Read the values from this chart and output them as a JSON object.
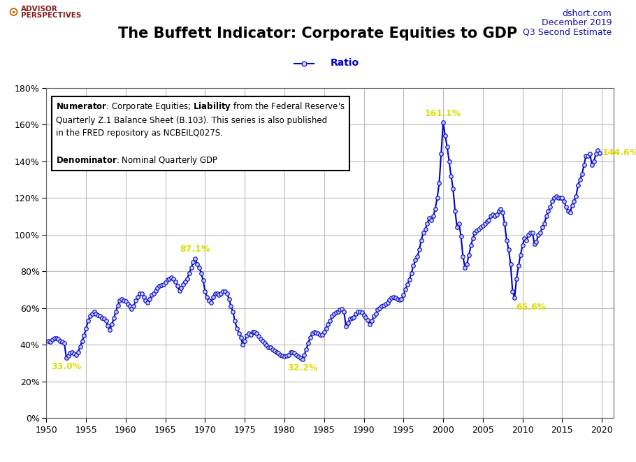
{
  "title": "The Buffett Indicator: Corporate Equities to GDP",
  "subtitle_right_line1": "dshort.com",
  "subtitle_right_line2": "December 2019",
  "subtitle_right_line3": "Q3 Second Estimate",
  "legend_label": "Ratio",
  "ylim": [
    0.0,
    1.8
  ],
  "xlim": [
    1950,
    2021.5
  ],
  "xticks": [
    1950,
    1955,
    1960,
    1965,
    1970,
    1975,
    1980,
    1985,
    1990,
    1995,
    2000,
    2005,
    2010,
    2015,
    2020
  ],
  "yticks": [
    0.0,
    0.2,
    0.4,
    0.6,
    0.8,
    1.0,
    1.2,
    1.4,
    1.6,
    1.8
  ],
  "line_color": "#0000CC",
  "marker_facecolor": "#c8d0f0",
  "background_color": "#ffffff",
  "grid_color": "#bbbbbb",
  "annotation_color": "#dddd00",
  "annotation_points": [
    {
      "year": 1952.5,
      "value": 0.33,
      "label": "33.0%",
      "ha": "center",
      "va": "top",
      "ox": 0,
      "oy": -0.025
    },
    {
      "year": 1968.75,
      "value": 0.871,
      "label": "87.1%",
      "ha": "center",
      "va": "bottom",
      "ox": 0,
      "oy": 0.025
    },
    {
      "year": 1982.25,
      "value": 0.322,
      "label": "32.2%",
      "ha": "center",
      "va": "top",
      "ox": 0,
      "oy": -0.025
    },
    {
      "year": 2000.0,
      "value": 1.611,
      "label": "161.1%",
      "ha": "center",
      "va": "bottom",
      "ox": 0,
      "oy": 0.025
    },
    {
      "year": 2009.0,
      "value": 0.656,
      "label": "65.6%",
      "ha": "left",
      "va": "top",
      "ox": 0.2,
      "oy": -0.025
    },
    {
      "year": 2019.75,
      "value": 1.446,
      "label": "144.6%",
      "ha": "left",
      "va": "center",
      "ox": 0.25,
      "oy": 0.0
    }
  ],
  "ratio_data": [
    [
      1950.25,
      0.42
    ],
    [
      1950.5,
      0.415
    ],
    [
      1950.75,
      0.428
    ],
    [
      1951.0,
      0.435
    ],
    [
      1951.25,
      0.435
    ],
    [
      1951.5,
      0.43
    ],
    [
      1951.75,
      0.42
    ],
    [
      1952.0,
      0.415
    ],
    [
      1952.25,
      0.41
    ],
    [
      1952.5,
      0.33
    ],
    [
      1952.75,
      0.34
    ],
    [
      1953.0,
      0.355
    ],
    [
      1953.25,
      0.36
    ],
    [
      1953.5,
      0.35
    ],
    [
      1953.75,
      0.345
    ],
    [
      1954.0,
      0.36
    ],
    [
      1954.25,
      0.39
    ],
    [
      1954.5,
      0.42
    ],
    [
      1954.75,
      0.45
    ],
    [
      1955.0,
      0.49
    ],
    [
      1955.25,
      0.53
    ],
    [
      1955.5,
      0.555
    ],
    [
      1955.75,
      0.57
    ],
    [
      1956.0,
      0.58
    ],
    [
      1956.25,
      0.57
    ],
    [
      1956.5,
      0.56
    ],
    [
      1956.75,
      0.555
    ],
    [
      1957.0,
      0.545
    ],
    [
      1957.25,
      0.54
    ],
    [
      1957.5,
      0.53
    ],
    [
      1957.75,
      0.505
    ],
    [
      1958.0,
      0.48
    ],
    [
      1958.25,
      0.51
    ],
    [
      1958.5,
      0.545
    ],
    [
      1958.75,
      0.58
    ],
    [
      1959.0,
      0.615
    ],
    [
      1959.25,
      0.64
    ],
    [
      1959.5,
      0.65
    ],
    [
      1959.75,
      0.64
    ],
    [
      1960.0,
      0.635
    ],
    [
      1960.25,
      0.62
    ],
    [
      1960.5,
      0.61
    ],
    [
      1960.75,
      0.595
    ],
    [
      1961.0,
      0.61
    ],
    [
      1961.25,
      0.64
    ],
    [
      1961.5,
      0.66
    ],
    [
      1961.75,
      0.68
    ],
    [
      1962.0,
      0.68
    ],
    [
      1962.25,
      0.66
    ],
    [
      1962.5,
      0.64
    ],
    [
      1962.75,
      0.63
    ],
    [
      1963.0,
      0.65
    ],
    [
      1963.25,
      0.67
    ],
    [
      1963.5,
      0.68
    ],
    [
      1963.75,
      0.695
    ],
    [
      1964.0,
      0.71
    ],
    [
      1964.25,
      0.72
    ],
    [
      1964.5,
      0.725
    ],
    [
      1964.75,
      0.73
    ],
    [
      1965.0,
      0.74
    ],
    [
      1965.25,
      0.755
    ],
    [
      1965.5,
      0.76
    ],
    [
      1965.75,
      0.765
    ],
    [
      1966.0,
      0.76
    ],
    [
      1966.25,
      0.745
    ],
    [
      1966.5,
      0.72
    ],
    [
      1966.75,
      0.695
    ],
    [
      1967.0,
      0.71
    ],
    [
      1967.25,
      0.73
    ],
    [
      1967.5,
      0.745
    ],
    [
      1967.75,
      0.76
    ],
    [
      1968.0,
      0.79
    ],
    [
      1968.25,
      0.82
    ],
    [
      1968.5,
      0.85
    ],
    [
      1968.75,
      0.871
    ],
    [
      1969.0,
      0.84
    ],
    [
      1969.25,
      0.82
    ],
    [
      1969.5,
      0.79
    ],
    [
      1969.75,
      0.75
    ],
    [
      1970.0,
      0.69
    ],
    [
      1970.25,
      0.66
    ],
    [
      1970.5,
      0.64
    ],
    [
      1970.75,
      0.63
    ],
    [
      1971.0,
      0.66
    ],
    [
      1971.25,
      0.68
    ],
    [
      1971.5,
      0.68
    ],
    [
      1971.75,
      0.67
    ],
    [
      1972.0,
      0.68
    ],
    [
      1972.25,
      0.69
    ],
    [
      1972.5,
      0.69
    ],
    [
      1972.75,
      0.68
    ],
    [
      1973.0,
      0.65
    ],
    [
      1973.25,
      0.61
    ],
    [
      1973.5,
      0.58
    ],
    [
      1973.75,
      0.53
    ],
    [
      1974.0,
      0.49
    ],
    [
      1974.25,
      0.46
    ],
    [
      1974.5,
      0.44
    ],
    [
      1974.75,
      0.4
    ],
    [
      1975.0,
      0.42
    ],
    [
      1975.25,
      0.45
    ],
    [
      1975.5,
      0.46
    ],
    [
      1975.75,
      0.455
    ],
    [
      1976.0,
      0.47
    ],
    [
      1976.25,
      0.47
    ],
    [
      1976.5,
      0.46
    ],
    [
      1976.75,
      0.445
    ],
    [
      1977.0,
      0.43
    ],
    [
      1977.25,
      0.42
    ],
    [
      1977.5,
      0.41
    ],
    [
      1977.75,
      0.395
    ],
    [
      1978.0,
      0.385
    ],
    [
      1978.25,
      0.385
    ],
    [
      1978.5,
      0.375
    ],
    [
      1978.75,
      0.365
    ],
    [
      1979.0,
      0.36
    ],
    [
      1979.25,
      0.355
    ],
    [
      1979.5,
      0.345
    ],
    [
      1979.75,
      0.34
    ],
    [
      1980.0,
      0.335
    ],
    [
      1980.25,
      0.34
    ],
    [
      1980.5,
      0.345
    ],
    [
      1980.75,
      0.36
    ],
    [
      1981.0,
      0.36
    ],
    [
      1981.25,
      0.355
    ],
    [
      1981.5,
      0.345
    ],
    [
      1981.75,
      0.335
    ],
    [
      1982.0,
      0.33
    ],
    [
      1982.25,
      0.322
    ],
    [
      1982.5,
      0.345
    ],
    [
      1982.75,
      0.375
    ],
    [
      1983.0,
      0.41
    ],
    [
      1983.25,
      0.44
    ],
    [
      1983.5,
      0.46
    ],
    [
      1983.75,
      0.47
    ],
    [
      1984.0,
      0.465
    ],
    [
      1984.25,
      0.46
    ],
    [
      1984.5,
      0.455
    ],
    [
      1984.75,
      0.455
    ],
    [
      1985.0,
      0.47
    ],
    [
      1985.25,
      0.49
    ],
    [
      1985.5,
      0.51
    ],
    [
      1985.75,
      0.53
    ],
    [
      1986.0,
      0.555
    ],
    [
      1986.25,
      0.57
    ],
    [
      1986.5,
      0.575
    ],
    [
      1986.75,
      0.58
    ],
    [
      1987.0,
      0.59
    ],
    [
      1987.25,
      0.595
    ],
    [
      1987.5,
      0.58
    ],
    [
      1987.75,
      0.5
    ],
    [
      1988.0,
      0.52
    ],
    [
      1988.25,
      0.54
    ],
    [
      1988.5,
      0.545
    ],
    [
      1988.75,
      0.55
    ],
    [
      1989.0,
      0.57
    ],
    [
      1989.25,
      0.58
    ],
    [
      1989.5,
      0.58
    ],
    [
      1989.75,
      0.575
    ],
    [
      1990.0,
      0.56
    ],
    [
      1990.25,
      0.55
    ],
    [
      1990.5,
      0.535
    ],
    [
      1990.75,
      0.51
    ],
    [
      1991.0,
      0.53
    ],
    [
      1991.25,
      0.555
    ],
    [
      1991.5,
      0.57
    ],
    [
      1991.75,
      0.59
    ],
    [
      1992.0,
      0.6
    ],
    [
      1992.25,
      0.61
    ],
    [
      1992.5,
      0.615
    ],
    [
      1992.75,
      0.62
    ],
    [
      1993.0,
      0.63
    ],
    [
      1993.25,
      0.645
    ],
    [
      1993.5,
      0.655
    ],
    [
      1993.75,
      0.66
    ],
    [
      1994.0,
      0.655
    ],
    [
      1994.25,
      0.65
    ],
    [
      1994.5,
      0.645
    ],
    [
      1994.75,
      0.65
    ],
    [
      1995.0,
      0.67
    ],
    [
      1995.25,
      0.7
    ],
    [
      1995.5,
      0.73
    ],
    [
      1995.75,
      0.755
    ],
    [
      1996.0,
      0.79
    ],
    [
      1996.25,
      0.83
    ],
    [
      1996.5,
      0.86
    ],
    [
      1996.75,
      0.88
    ],
    [
      1997.0,
      0.92
    ],
    [
      1997.25,
      0.97
    ],
    [
      1997.5,
      1.01
    ],
    [
      1997.75,
      1.03
    ],
    [
      1998.0,
      1.06
    ],
    [
      1998.25,
      1.09
    ],
    [
      1998.5,
      1.08
    ],
    [
      1998.75,
      1.1
    ],
    [
      1999.0,
      1.14
    ],
    [
      1999.25,
      1.2
    ],
    [
      1999.5,
      1.28
    ],
    [
      1999.75,
      1.44
    ],
    [
      2000.0,
      1.611
    ],
    [
      2000.25,
      1.54
    ],
    [
      2000.5,
      1.48
    ],
    [
      2000.75,
      1.4
    ],
    [
      2001.0,
      1.32
    ],
    [
      2001.25,
      1.25
    ],
    [
      2001.5,
      1.13
    ],
    [
      2001.75,
      1.04
    ],
    [
      2002.0,
      1.06
    ],
    [
      2002.25,
      0.99
    ],
    [
      2002.5,
      0.88
    ],
    [
      2002.75,
      0.82
    ],
    [
      2003.0,
      0.84
    ],
    [
      2003.25,
      0.89
    ],
    [
      2003.5,
      0.94
    ],
    [
      2003.75,
      0.98
    ],
    [
      2004.0,
      1.01
    ],
    [
      2004.25,
      1.02
    ],
    [
      2004.5,
      1.03
    ],
    [
      2004.75,
      1.04
    ],
    [
      2005.0,
      1.05
    ],
    [
      2005.25,
      1.06
    ],
    [
      2005.5,
      1.07
    ],
    [
      2005.75,
      1.08
    ],
    [
      2006.0,
      1.1
    ],
    [
      2006.25,
      1.11
    ],
    [
      2006.5,
      1.1
    ],
    [
      2006.75,
      1.11
    ],
    [
      2007.0,
      1.13
    ],
    [
      2007.25,
      1.14
    ],
    [
      2007.5,
      1.12
    ],
    [
      2007.75,
      1.06
    ],
    [
      2008.0,
      0.97
    ],
    [
      2008.25,
      0.92
    ],
    [
      2008.5,
      0.84
    ],
    [
      2008.75,
      0.69
    ],
    [
      2009.0,
      0.656
    ],
    [
      2009.25,
      0.76
    ],
    [
      2009.5,
      0.83
    ],
    [
      2009.75,
      0.89
    ],
    [
      2010.0,
      0.94
    ],
    [
      2010.25,
      0.98
    ],
    [
      2010.5,
      0.97
    ],
    [
      2010.75,
      1.0
    ],
    [
      2011.0,
      1.01
    ],
    [
      2011.25,
      1.01
    ],
    [
      2011.5,
      0.95
    ],
    [
      2011.75,
      0.96
    ],
    [
      2012.0,
      1.0
    ],
    [
      2012.25,
      1.01
    ],
    [
      2012.5,
      1.04
    ],
    [
      2012.75,
      1.06
    ],
    [
      2013.0,
      1.1
    ],
    [
      2013.25,
      1.13
    ],
    [
      2013.5,
      1.15
    ],
    [
      2013.75,
      1.18
    ],
    [
      2014.0,
      1.2
    ],
    [
      2014.25,
      1.21
    ],
    [
      2014.5,
      1.2
    ],
    [
      2014.75,
      1.2
    ],
    [
      2015.0,
      1.2
    ],
    [
      2015.25,
      1.18
    ],
    [
      2015.5,
      1.15
    ],
    [
      2015.75,
      1.13
    ],
    [
      2016.0,
      1.12
    ],
    [
      2016.25,
      1.16
    ],
    [
      2016.5,
      1.18
    ],
    [
      2016.75,
      1.21
    ],
    [
      2017.0,
      1.27
    ],
    [
      2017.25,
      1.3
    ],
    [
      2017.5,
      1.33
    ],
    [
      2017.75,
      1.38
    ],
    [
      2018.0,
      1.43
    ],
    [
      2018.25,
      1.43
    ],
    [
      2018.5,
      1.44
    ],
    [
      2018.75,
      1.38
    ],
    [
      2019.0,
      1.4
    ],
    [
      2019.25,
      1.44
    ],
    [
      2019.5,
      1.46
    ],
    [
      2019.75,
      1.446
    ]
  ]
}
